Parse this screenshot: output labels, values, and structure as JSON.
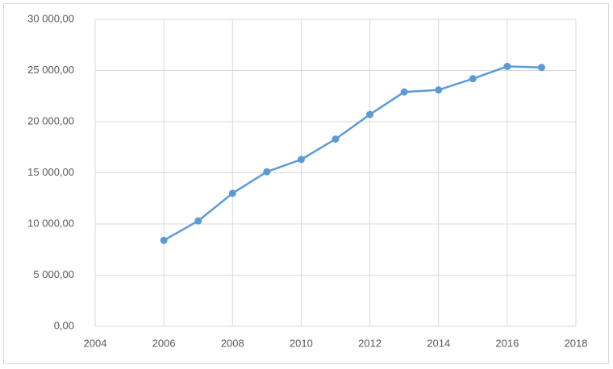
{
  "chart_data": {
    "type": "line",
    "x": [
      2006,
      2007,
      2008,
      2009,
      2010,
      2011,
      2012,
      2013,
      2014,
      2015,
      2016,
      2017
    ],
    "series": [
      {
        "color": "#5b9bd5",
        "values": [
          8400,
          10300,
          13000,
          15100,
          16300,
          18300,
          20700,
          22900,
          23100,
          24200,
          25400,
          25300
        ]
      }
    ],
    "xlim": [
      2004,
      2018
    ],
    "xticks": [
      2004,
      2006,
      2008,
      2010,
      2012,
      2014,
      2016,
      2018
    ],
    "ylim": [
      0,
      30000
    ],
    "yticks": [
      {
        "value": 0,
        "label": "0,00"
      },
      {
        "value": 5000,
        "label": "5 000,00"
      },
      {
        "value": 10000,
        "label": "10 000,00"
      },
      {
        "value": 15000,
        "label": "15 000,00"
      },
      {
        "value": 20000,
        "label": "20 000,00"
      },
      {
        "value": 25000,
        "label": "25 000,00"
      },
      {
        "value": 30000,
        "label": "30 000,00"
      }
    ],
    "grid": true
  }
}
